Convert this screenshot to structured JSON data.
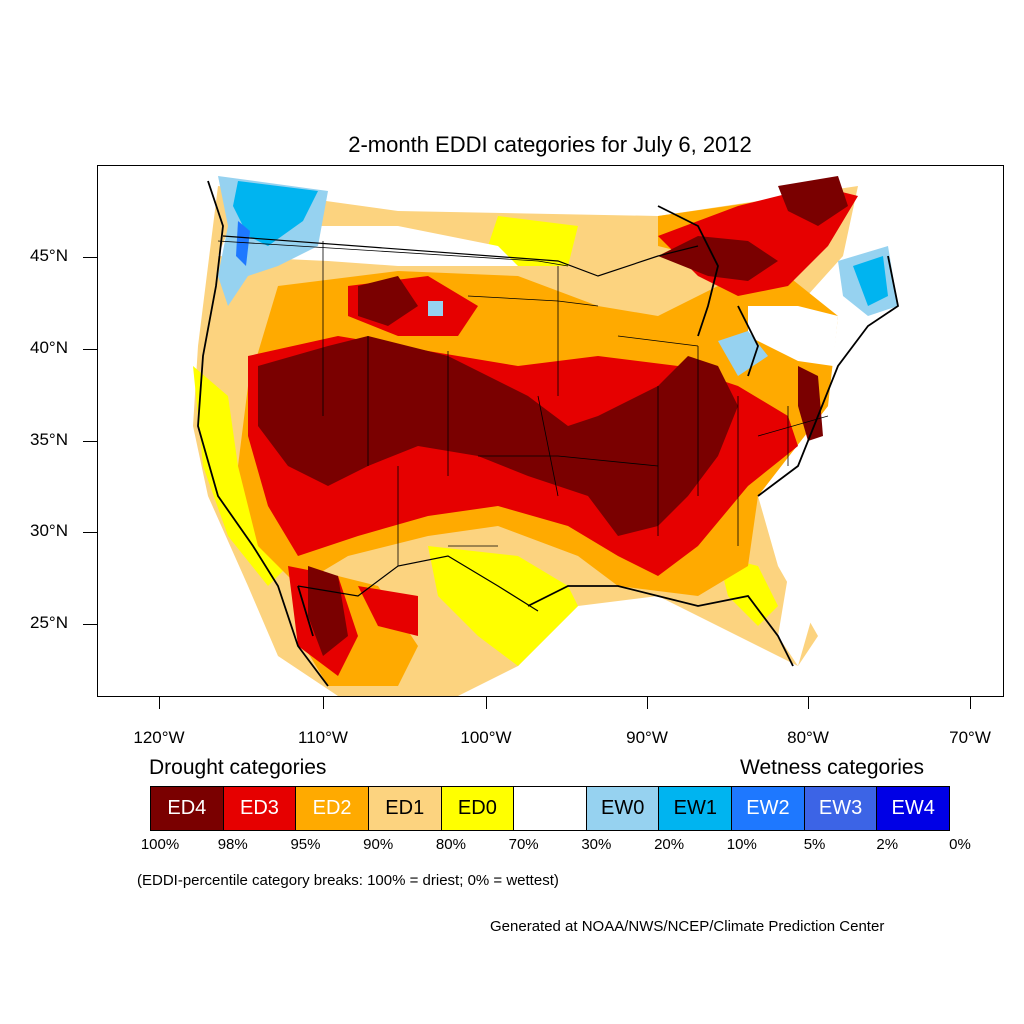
{
  "title": "2-month EDDI categories for July 6, 2012",
  "lat_labels": [
    "45°N",
    "40°N",
    "35°N",
    "30°N",
    "25°N"
  ],
  "lon_labels": [
    "120°W",
    "110°W",
    "100°W",
    "90°W",
    "80°W",
    "70°W"
  ],
  "legend": {
    "drought_heading": "Drought categories",
    "wetness_heading": "Wetness categories",
    "categories": [
      {
        "label": "ED4",
        "color": "#7a0000",
        "text_color": "#ffffff"
      },
      {
        "label": "ED3",
        "color": "#e60000",
        "text_color": "#ffffff"
      },
      {
        "label": "ED2",
        "color": "#ffaa00",
        "text_color": "#ffffff"
      },
      {
        "label": "ED1",
        "color": "#fcd37f",
        "text_color": "#000000"
      },
      {
        "label": "ED0",
        "color": "#ffff00",
        "text_color": "#000000"
      },
      {
        "label": "",
        "color": "#ffffff",
        "text_color": "#000000"
      },
      {
        "label": "EW0",
        "color": "#96d2f0",
        "text_color": "#000000"
      },
      {
        "label": "EW1",
        "color": "#00b4f0",
        "text_color": "#000000"
      },
      {
        "label": "EW2",
        "color": "#1e78ff",
        "text_color": "#ffffff"
      },
      {
        "label": "EW3",
        "color": "#3c64e6",
        "text_color": "#ffffff"
      },
      {
        "label": "EW4",
        "color": "#0000e6",
        "text_color": "#ffffff"
      }
    ],
    "breaks": [
      "100%",
      "98%",
      "95%",
      "90%",
      "80%",
      "70%",
      "30%",
      "20%",
      "10%",
      "5%",
      "2%",
      "0%"
    ]
  },
  "note": "(EDDI-percentile category breaks: 100% = driest; 0% = wettest)",
  "credit": "Generated at NOAA/NWS/NCEP/Climate Prediction Center"
}
